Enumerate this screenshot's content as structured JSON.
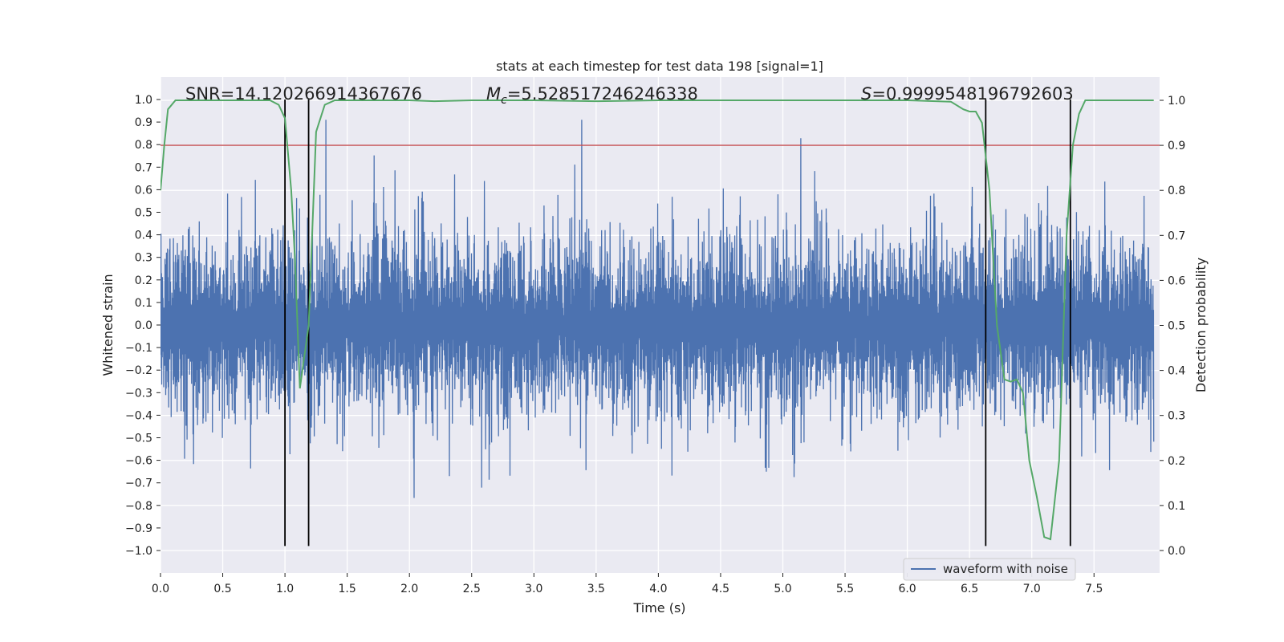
{
  "chart_data": {
    "type": "line",
    "title": "stats at each timestep for test data 198 [signal=1]",
    "xlabel": "Time (s)",
    "ylabel": "Whitened strain",
    "y2label": "Detection probability",
    "xlim": [
      0.0,
      8.0
    ],
    "ylim": [
      -1.08,
      1.1
    ],
    "y2lim": [
      -0.045,
      1.045
    ],
    "x_ticks": [
      "0.0",
      "0.5",
      "1.0",
      "1.5",
      "2.0",
      "2.5",
      "3.0",
      "3.5",
      "4.0",
      "4.5",
      "5.0",
      "5.5",
      "6.0",
      "6.5",
      "7.0",
      "7.5"
    ],
    "y_ticks": [
      "−1.0",
      "−0.9",
      "−0.8",
      "−0.7",
      "−0.6",
      "−0.5",
      "−0.4",
      "−0.3",
      "−0.2",
      "−0.1",
      "0.0",
      "0.1",
      "0.2",
      "0.3",
      "0.4",
      "0.5",
      "0.6",
      "0.7",
      "0.8",
      "0.9",
      "1.0"
    ],
    "y2_ticks": [
      "0.0",
      "0.1",
      "0.2",
      "0.3",
      "0.4",
      "0.5",
      "0.6",
      "0.7",
      "0.8",
      "0.9",
      "1.0"
    ],
    "grid": true,
    "legend": {
      "location": "lower-right",
      "entries": [
        "waveform with noise"
      ]
    },
    "annotations": {
      "snr": "SNR=14.120266914367676",
      "mc_symbol": "M",
      "mc_sub": "c",
      "mc_value": "=5.528517246246338",
      "s_symbol": "S",
      "s_value": "=0.9999548196792603"
    },
    "threshold": {
      "y2": 0.9,
      "color": "#c44e52"
    },
    "vertical_lines": {
      "x": [
        1.0,
        1.19,
        6.63,
        7.31
      ],
      "y_range": [
        -0.98,
        1.0
      ],
      "color": "#000000"
    },
    "series": [
      {
        "name": "waveform with noise",
        "axis": "left",
        "color": "#4c72b0",
        "description_values": {
          "core_band": [
            -0.2,
            0.2
          ],
          "typical_range": [
            -0.5,
            0.6
          ],
          "extremes": [
            -0.98,
            0.91
          ]
        }
      },
      {
        "axis": "right",
        "color": "#55a868",
        "x": [
          0.0,
          0.03,
          0.06,
          0.12,
          0.2,
          0.3,
          0.5,
          0.7,
          0.88,
          0.95,
          1.0,
          1.05,
          1.08,
          1.12,
          1.19,
          1.25,
          1.32,
          1.4,
          1.6,
          2.0,
          2.2,
          2.5,
          3.0,
          3.5,
          4.0,
          5.0,
          6.0,
          6.35,
          6.45,
          6.5,
          6.55,
          6.6,
          6.66,
          6.72,
          6.78,
          6.83,
          6.88,
          6.93,
          6.98,
          7.04,
          7.1,
          7.15,
          7.22,
          7.28,
          7.33,
          7.38,
          7.43,
          7.5,
          7.7,
          7.98
        ],
        "values": [
          0.8,
          0.9,
          0.98,
          1.0,
          1.0,
          1.0,
          1.0,
          1.0,
          1.0,
          0.99,
          0.96,
          0.8,
          0.65,
          0.36,
          0.5,
          0.93,
          0.99,
          1.0,
          1.0,
          1.0,
          0.998,
          1.0,
          1.0,
          0.998,
          1.0,
          1.0,
          1.0,
          0.997,
          0.98,
          0.975,
          0.975,
          0.95,
          0.8,
          0.5,
          0.38,
          0.375,
          0.38,
          0.35,
          0.2,
          0.12,
          0.03,
          0.025,
          0.2,
          0.7,
          0.9,
          0.97,
          1.0,
          1.0,
          1.0,
          1.0
        ]
      }
    ]
  }
}
